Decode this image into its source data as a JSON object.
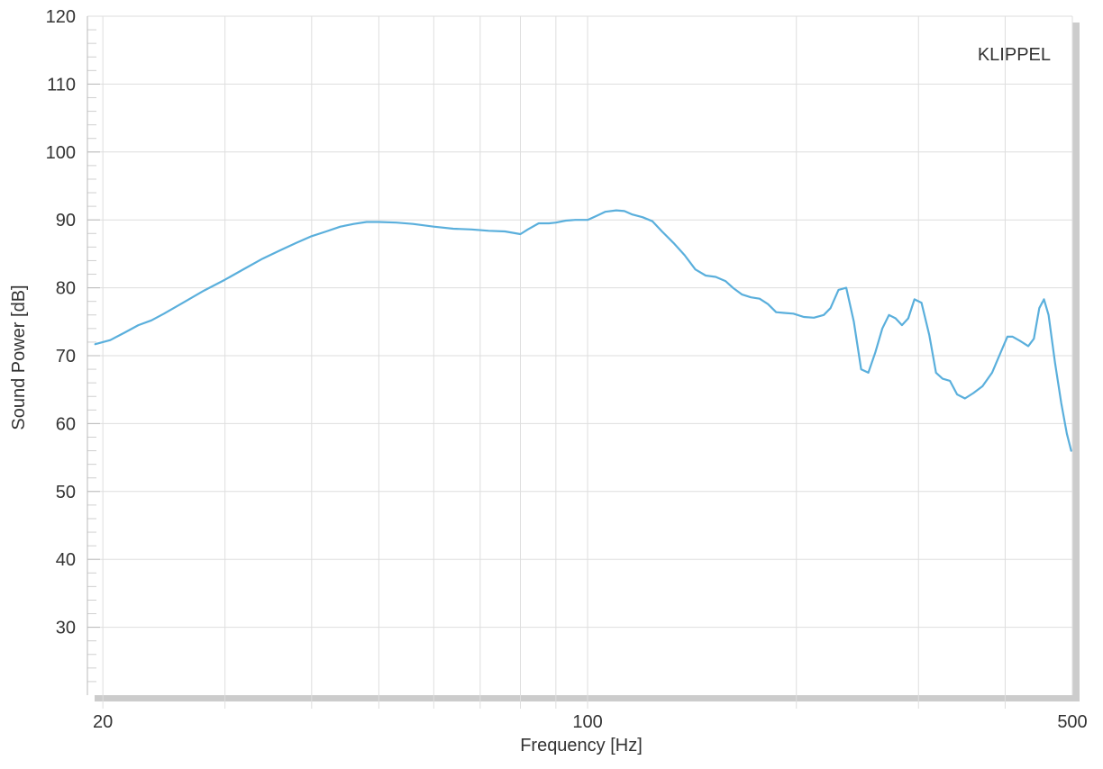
{
  "chart_data": {
    "type": "line",
    "xlabel": "Frequency [Hz]",
    "ylabel": "Sound Power [dB]",
    "watermark": "KLIPPEL",
    "x_scale": "log",
    "xlim": [
      19,
      500
    ],
    "ylim": [
      20,
      120
    ],
    "x_tick_labels": [
      {
        "value": 20,
        "label": "20"
      },
      {
        "value": 100,
        "label": "100"
      },
      {
        "value": 500,
        "label": "500"
      }
    ],
    "y_ticks": [
      30,
      40,
      50,
      60,
      70,
      80,
      90,
      100,
      110,
      120
    ],
    "grid": true,
    "line_color": "#5aafdc",
    "series": [
      {
        "x": [
          19.5,
          20.5,
          21.5,
          22.5,
          23.5,
          24.5,
          26,
          28,
          30,
          32,
          34,
          36,
          38,
          40,
          42,
          44,
          46,
          48,
          50,
          53,
          56,
          60,
          64,
          68,
          72,
          76,
          80,
          82,
          85,
          88,
          90,
          93,
          96,
          100,
          103,
          106,
          110,
          113,
          116,
          120,
          124,
          128,
          133,
          138,
          143,
          148,
          153,
          158,
          162,
          167,
          172,
          177,
          182,
          187,
          192,
          198,
          205,
          212,
          219,
          224,
          230,
          236,
          242,
          248,
          254,
          260,
          266,
          272,
          278,
          284,
          290,
          296,
          303,
          311,
          318,
          325,
          333,
          341,
          350,
          360,
          371,
          383,
          396,
          403,
          410,
          420,
          432,
          440,
          448,
          455,
          462,
          472,
          482,
          491,
          498
        ],
        "y": [
          71.7,
          72.3,
          73.4,
          74.5,
          75.2,
          76.2,
          77.7,
          79.6,
          81.2,
          82.8,
          84.3,
          85.5,
          86.6,
          87.6,
          88.3,
          89.0,
          89.4,
          89.7,
          89.7,
          89.6,
          89.4,
          89.0,
          88.7,
          88.6,
          88.4,
          88.3,
          87.9,
          88.6,
          89.5,
          89.5,
          89.6,
          89.9,
          90.0,
          90.0,
          90.6,
          91.2,
          91.4,
          91.3,
          90.8,
          90.4,
          89.8,
          88.3,
          86.6,
          84.8,
          82.7,
          81.8,
          81.6,
          81.0,
          80.0,
          79.0,
          78.6,
          78.4,
          77.6,
          76.4,
          76.3,
          76.2,
          75.7,
          75.6,
          76.0,
          77.0,
          79.7,
          80.0,
          75.0,
          68.0,
          67.5,
          70.5,
          74.0,
          76.0,
          75.5,
          74.5,
          75.5,
          78.3,
          77.8,
          73.0,
          67.5,
          66.6,
          66.3,
          64.3,
          63.7,
          64.5,
          65.5,
          67.5,
          71.0,
          72.8,
          72.8,
          72.2,
          71.4,
          72.5,
          77.0,
          78.3,
          76.0,
          69.0,
          63.0,
          58.5,
          56.0
        ]
      }
    ]
  }
}
